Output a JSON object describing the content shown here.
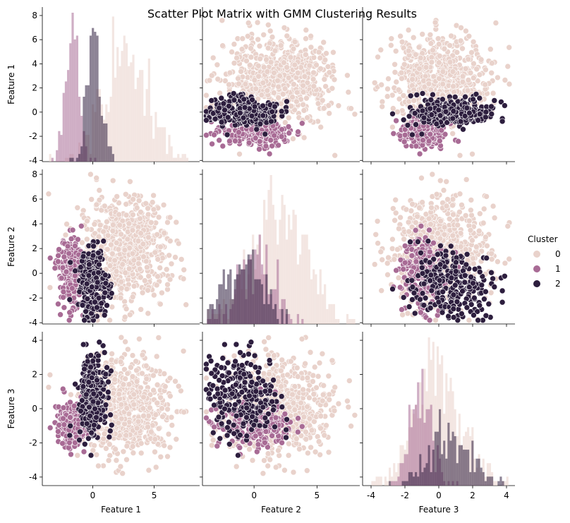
{
  "figure": {
    "title": "Scatter Plot Matrix with GMM Clustering Results"
  },
  "chart_data": {
    "type": "scatter-matrix",
    "title": "Scatter Plot Matrix with GMM Clustering Results",
    "features": [
      "Feature 1",
      "Feature 2",
      "Feature 3"
    ],
    "ranges": {
      "Feature 1": [
        -4.1,
        8.7
      ],
      "Feature 2": [
        -4.1,
        8.4
      ],
      "Feature 3": [
        -4.5,
        4.5
      ]
    },
    "ticks": {
      "Feature 1": [
        -4,
        -2,
        0,
        2,
        4,
        6,
        8
      ],
      "Feature 2": [
        -4,
        -2,
        0,
        2,
        4,
        6,
        8
      ],
      "Feature 3": [
        -4,
        -2,
        0,
        2,
        4
      ]
    },
    "x_ticks": {
      "Feature 1": [
        0,
        5
      ],
      "Feature 2": [
        0,
        5
      ],
      "Feature 3": [
        -4,
        -2,
        0,
        2,
        4
      ]
    },
    "diag_ranges": {
      "Feature 1": [
        -4.2,
        8.6
      ],
      "Feature 2": [
        -4.2,
        8.4
      ],
      "Feature 3": [
        -4.4,
        4.6
      ]
    },
    "diagonal": "histogram",
    "legend": {
      "title": "Cluster",
      "placement": "right",
      "entries": [
        "0",
        "1",
        "2"
      ]
    },
    "clusters": [
      {
        "name": "0",
        "color": "#e9d2cb",
        "mean": [
          2.5,
          2.0,
          0.0
        ],
        "sd": [
          1.8,
          2.1,
          1.4
        ]
      },
      {
        "name": "1",
        "color": "#a86b95",
        "mean": [
          -1.8,
          0.0,
          -1.0
        ],
        "sd": [
          0.55,
          1.4,
          0.6
        ]
      },
      {
        "name": "2",
        "color": "#2d1e3e",
        "mean": [
          0.0,
          -0.8,
          0.8
        ],
        "sd": [
          0.6,
          1.4,
          1.2
        ]
      }
    ],
    "histogram_peaks": {
      "Feature 1": {
        "0": 2.5,
        "1": -1.8,
        "2": -0.1
      },
      "Feature 2": {
        "0": 1.8,
        "1": 0.0,
        "2": -0.5
      },
      "Feature 3": {
        "0": -0.2,
        "1": -1.0,
        "2": 1.3
      }
    }
  }
}
